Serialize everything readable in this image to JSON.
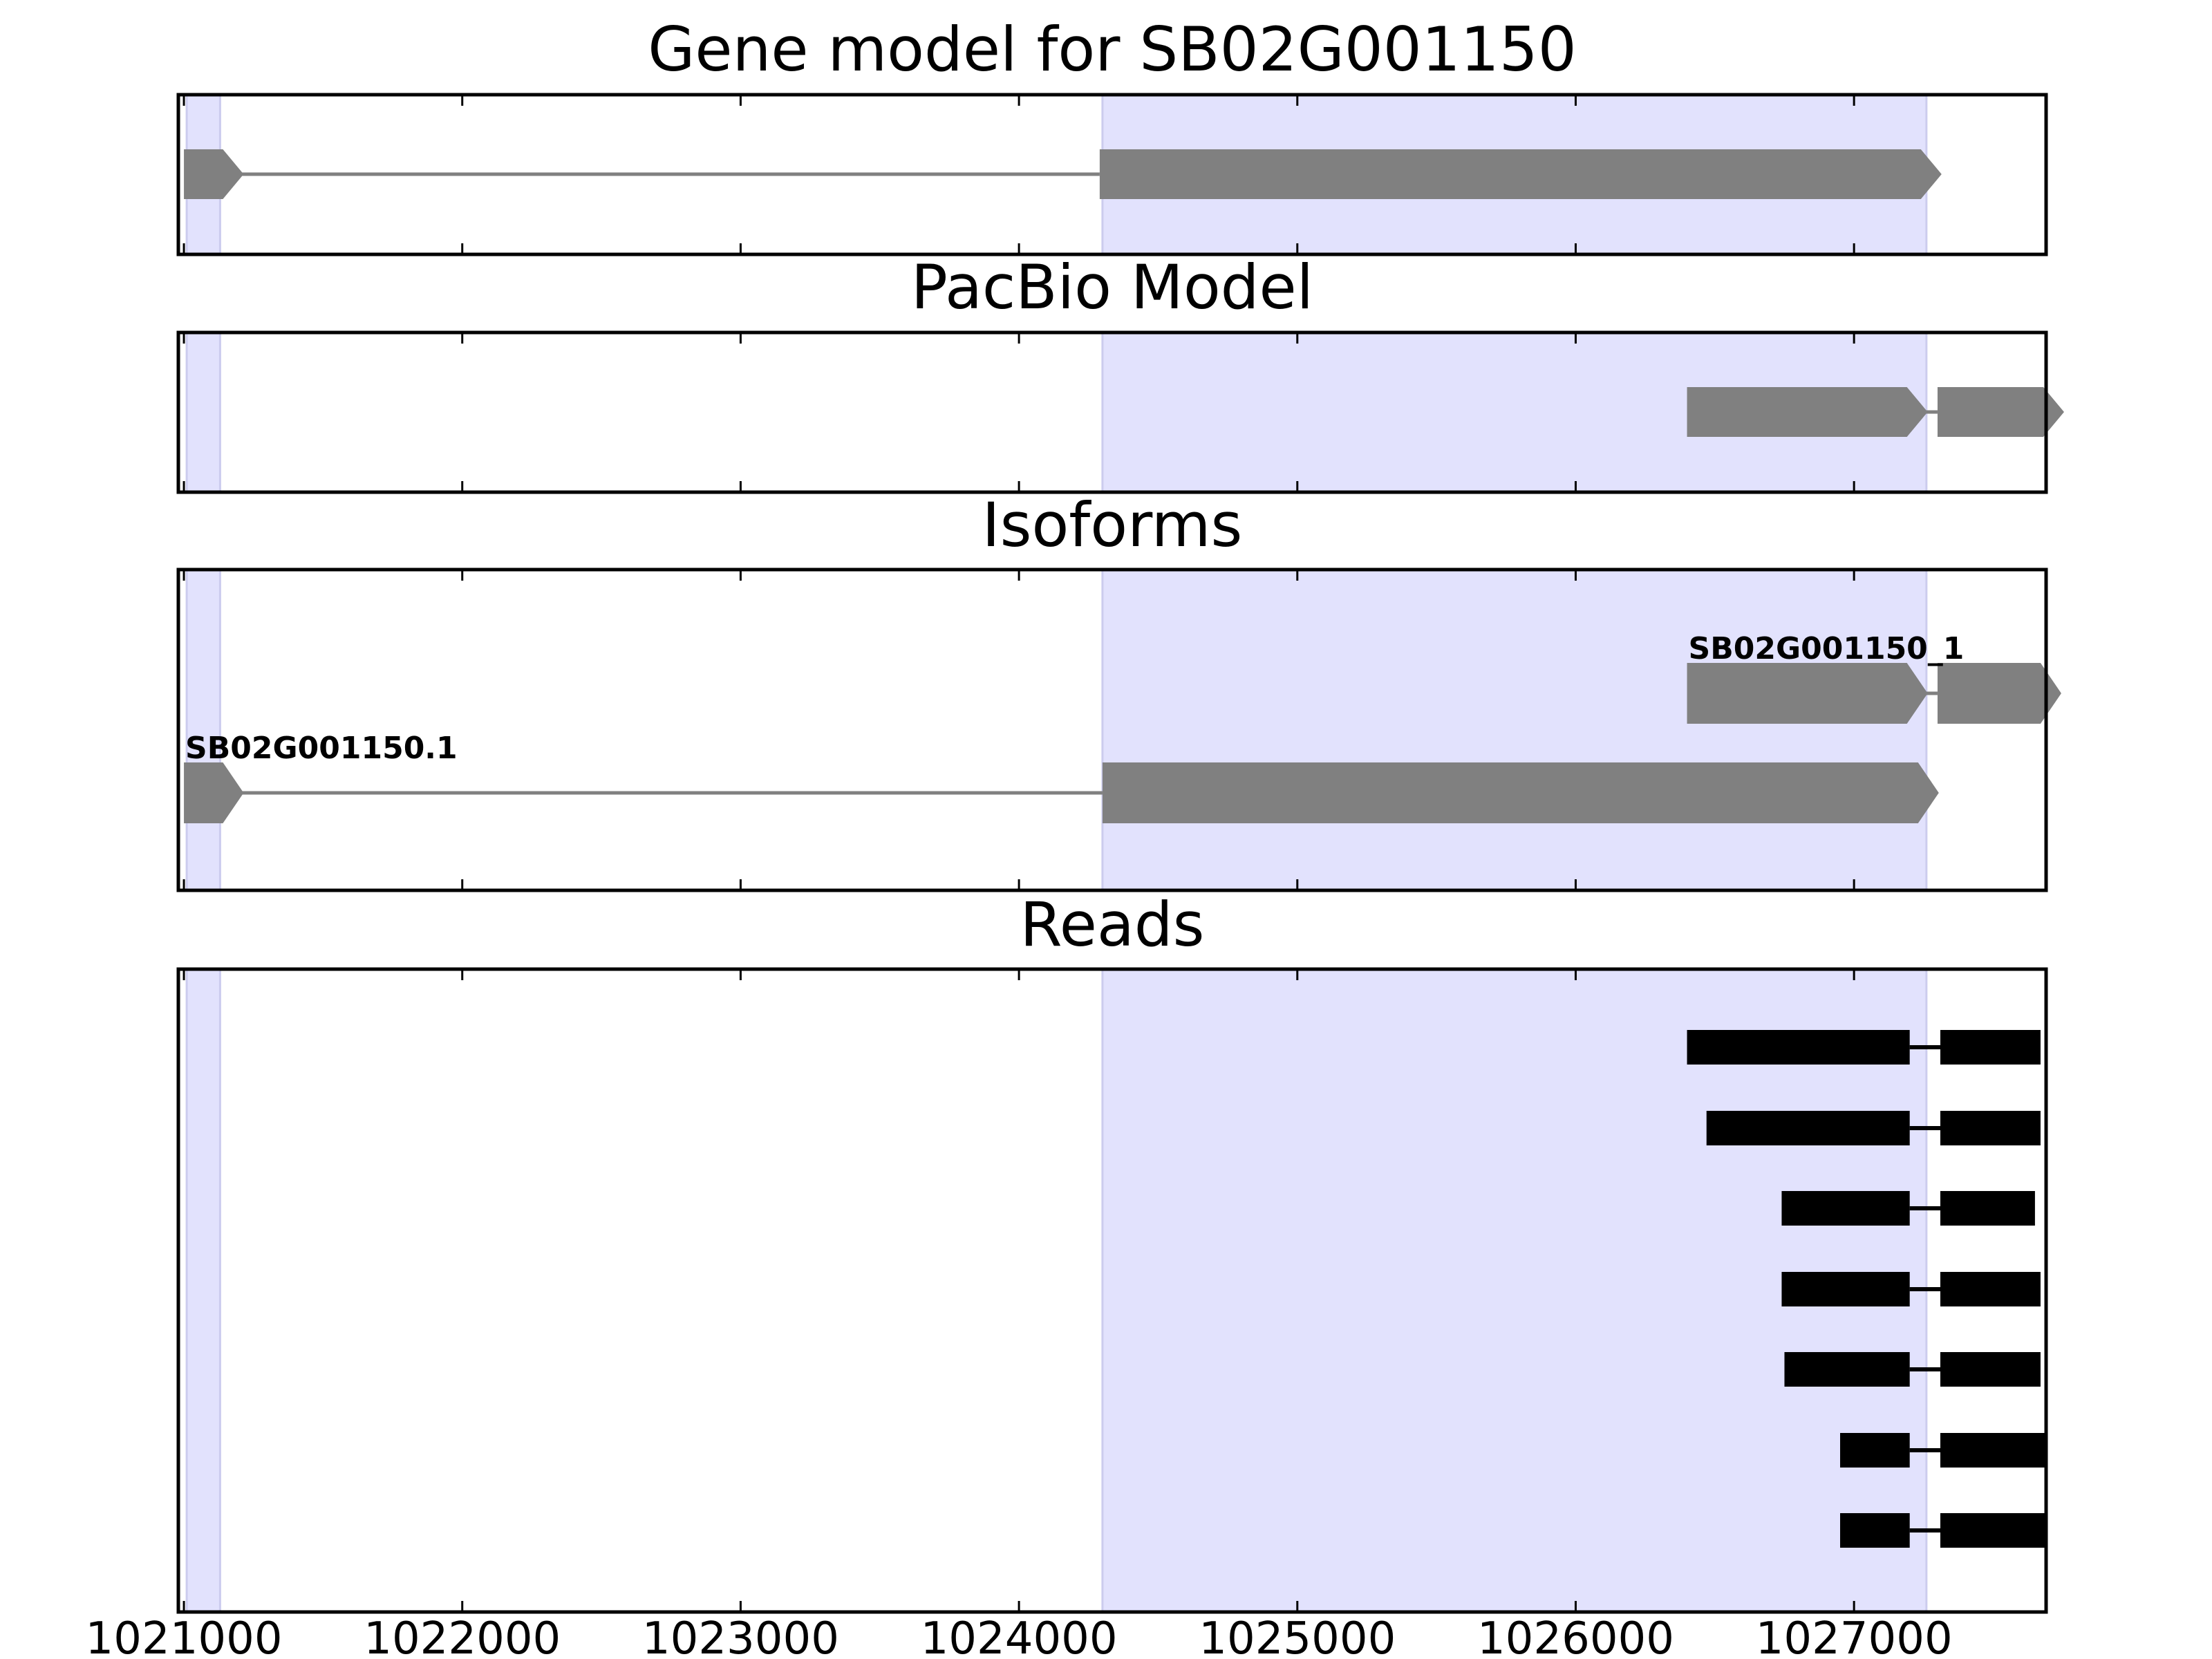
{
  "chart_data": {
    "type": "gene-track",
    "x_range": [
      1020980,
      1027690
    ],
    "x_ticks": [
      1021000,
      1022000,
      1023000,
      1024000,
      1025000,
      1026000,
      1027000
    ],
    "x_tick_labels": [
      "1021000",
      "1022000",
      "1023000",
      "1024000",
      "1025000",
      "1026000",
      "1027000"
    ],
    "highlight_color": "#e2e2fd",
    "highlight_regions": [
      [
        1021010,
        1021130
      ],
      [
        1024300,
        1027260
      ]
    ],
    "feature_color": "#808080",
    "read_color": "#000000",
    "panels": [
      {
        "title": "Gene model for SB02G001150",
        "tracks": [
          {
            "label": "",
            "strand": "+",
            "exons": [
              [
                1021000,
                1021140
              ],
              [
                1024290,
                1027240
              ]
            ]
          }
        ]
      },
      {
        "title": "PacBio Model",
        "tracks": [
          {
            "label": "",
            "strand": "+",
            "exons": [
              [
                1026400,
                1027190
              ],
              [
                1027300,
                1027680
              ]
            ]
          }
        ]
      },
      {
        "title": "Isoforms",
        "tracks": [
          {
            "label": "SB02G001150_1",
            "strand": "+",
            "exons": [
              [
                1026400,
                1027190
              ],
              [
                1027300,
                1027670
              ]
            ]
          },
          {
            "label": "SB02G001150.1",
            "strand": "+",
            "exons": [
              [
                1021000,
                1021140
              ],
              [
                1024300,
                1027230
              ]
            ]
          }
        ]
      },
      {
        "title": "Reads",
        "tracks": [
          {
            "exons": [
              [
                1026400,
                1027200
              ],
              [
                1027310,
                1027670
              ]
            ]
          },
          {
            "exons": [
              [
                1026470,
                1027200
              ],
              [
                1027310,
                1027670
              ]
            ]
          },
          {
            "exons": [
              [
                1026740,
                1027200
              ],
              [
                1027310,
                1027650
              ]
            ]
          },
          {
            "exons": [
              [
                1026740,
                1027200
              ],
              [
                1027310,
                1027670
              ]
            ]
          },
          {
            "exons": [
              [
                1026750,
                1027200
              ],
              [
                1027310,
                1027670
              ]
            ]
          },
          {
            "exons": [
              [
                1026950,
                1027200
              ],
              [
                1027310,
                1027690
              ]
            ]
          },
          {
            "exons": [
              [
                1026950,
                1027200
              ],
              [
                1027310,
                1027690
              ]
            ]
          }
        ]
      }
    ]
  }
}
